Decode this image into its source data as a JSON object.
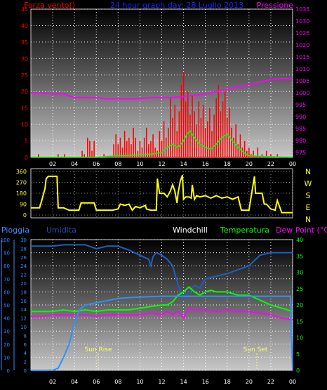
{
  "header": {
    "left_label": "Forza vento()",
    "center_label": "24 hour graph day: 28 Luglio 2013",
    "right_label": "Pressione"
  },
  "bottom_header": {
    "pioggia": "Pioggia",
    "umidita": "Umidita",
    "windchill": "Windchill",
    "temperatura": "Temperatura",
    "dewpoint": "Dew Point (°C)"
  },
  "compass_labels": [
    "N",
    "W",
    "S",
    "E",
    "N"
  ],
  "sun_labels": {
    "rise": "Sun Rise",
    "set": "Sun Set"
  },
  "colors": {
    "wind": "#ff0000",
    "wind_avg": "#00ff00",
    "pressure": "#ff00ff",
    "direction": "#ffff00",
    "humidity": "#1f5fc0",
    "rain": "#2f8fff",
    "temperature": "#00ff00",
    "dewpoint": "#ff00ff",
    "header_blue": "#2020ff"
  },
  "chart_data": [
    {
      "type": "line",
      "name": "wind-pressure",
      "xlabel": "",
      "ylabel": "",
      "x_ticks": [
        "02",
        "04",
        "06",
        "08",
        "10",
        "12",
        "14",
        "16",
        "18",
        "20",
        "22",
        "00"
      ],
      "left_ticks": [
        "45",
        "40",
        "35",
        "30",
        "25",
        "20",
        "15",
        "10",
        "5",
        "0"
      ],
      "right_ticks": [
        "1035",
        "1030",
        "1025",
        "1020",
        "1015",
        "1010",
        "1005",
        "1000",
        "995",
        "990",
        "985",
        "980",
        "975"
      ],
      "ylim_left": [
        0,
        45
      ],
      "ylim_right": [
        973,
        1035
      ],
      "x_range": [
        0,
        24
      ],
      "series": [
        {
          "series_key": "pressure",
          "x": [
            0,
            1,
            2,
            3,
            4,
            5,
            6,
            7,
            8,
            9,
            10,
            11,
            12,
            13,
            14,
            15,
            16,
            17,
            18,
            19,
            20,
            21,
            22,
            23,
            24
          ],
          "y": [
            1000,
            1000,
            999.5,
            999.5,
            998,
            998,
            998,
            997.5,
            997.5,
            997.5,
            997.5,
            998,
            998,
            998,
            998.5,
            999,
            999.5,
            1000.5,
            1001.5,
            1002.5,
            1003.5,
            1004.5,
            1005.5,
            1006,
            1006
          ]
        },
        {
          "series_key": "wind_avg",
          "x": [
            0,
            6,
            7,
            8,
            9,
            10,
            11,
            12,
            12.5,
            13,
            13.5,
            14,
            14.3,
            14.6,
            15,
            15.5,
            16,
            16.5,
            17,
            17.5,
            18,
            18.5,
            19,
            19.5,
            20,
            24
          ],
          "y": [
            0,
            0,
            0.3,
            0.5,
            0.5,
            0.8,
            1,
            1.5,
            3,
            4,
            3,
            5,
            7,
            8,
            6,
            4,
            3,
            2.5,
            4,
            6,
            7,
            5,
            3,
            1.5,
            0.5,
            0
          ]
        },
        {
          "series_key": "wind",
          "x": [
            0.7,
            2.5,
            3.1,
            4.7,
            4.9,
            5.2,
            5.4,
            5.6,
            5.8,
            6.7,
            7.6,
            7.8,
            8,
            8.2,
            8.4,
            8.6,
            8.8,
            9,
            9.2,
            9.4,
            9.6,
            9.8,
            10,
            10.2,
            10.4,
            10.6,
            10.8,
            11,
            11.2,
            11.4,
            11.6,
            11.8,
            12,
            12.2,
            12.4,
            12.6,
            12.8,
            13,
            13.2,
            13.4,
            13.6,
            13.8,
            14,
            14.2,
            14.4,
            14.6,
            14.8,
            15,
            15.2,
            15.4,
            15.6,
            15.8,
            16,
            16.2,
            16.4,
            16.6,
            16.8,
            17,
            17.2,
            17.4,
            17.6,
            17.8,
            18,
            18.2,
            18.4,
            18.6,
            18.8,
            19,
            19.2,
            19.4,
            19.6,
            19.8,
            20,
            20.2,
            20.4,
            20.8,
            21.2,
            21.6,
            22,
            22.6
          ],
          "y": [
            1,
            1,
            1,
            2,
            1,
            6,
            5,
            2,
            5,
            1,
            4,
            7,
            4,
            6,
            3,
            8,
            5,
            6,
            4,
            9,
            6,
            2,
            5,
            3,
            6,
            9,
            4,
            5,
            7,
            3,
            2,
            8,
            5,
            11,
            6,
            9,
            18,
            12,
            16,
            8,
            14,
            22,
            26,
            17,
            20,
            13,
            19,
            14,
            10,
            17,
            12,
            16,
            9,
            11,
            15,
            8,
            13,
            18,
            22,
            14,
            17,
            20,
            12,
            15,
            9,
            6,
            10,
            4,
            7,
            3,
            5,
            2,
            3,
            1,
            2,
            3,
            1,
            2,
            1,
            1
          ]
        }
      ]
    },
    {
      "type": "line",
      "name": "wind-direction",
      "xlabel": "",
      "ylabel": "",
      "y_ticks": [
        "360",
        "270",
        "180",
        "90",
        "0"
      ],
      "ylim": [
        0,
        360
      ],
      "x_range": [
        0,
        24
      ],
      "series": [
        {
          "series_key": "direction",
          "x": [
            0,
            0.8,
            1,
            1.3,
            1.4,
            1.6,
            2.4,
            2.5,
            2.8,
            3,
            3.5,
            4.4,
            4.6,
            5,
            5.1,
            5.8,
            6,
            6.3,
            6.6,
            7,
            7.5,
            8,
            8.2,
            8.6,
            9,
            9.3,
            9.6,
            10,
            10.5,
            10.6,
            11,
            11.5,
            11.6,
            11.8,
            12,
            12.2,
            12.5,
            12.8,
            13,
            13.2,
            13.4,
            13.5,
            13.7,
            13.9,
            14,
            14.2,
            14.5,
            14.7,
            14.8,
            15,
            15.2,
            15.5,
            16,
            16.5,
            17,
            17.5,
            18,
            18.5,
            19,
            19.3,
            19.6,
            20,
            20.5,
            20.6,
            21,
            21.2,
            21.4,
            21.6,
            22,
            22.4,
            22.6,
            23,
            23.5,
            24
          ],
          "y": [
            60,
            60,
            120,
            220,
            300,
            320,
            320,
            60,
            60,
            60,
            40,
            40,
            100,
            100,
            100,
            100,
            40,
            40,
            40,
            40,
            40,
            50,
            90,
            80,
            90,
            40,
            70,
            60,
            80,
            50,
            40,
            40,
            300,
            180,
            180,
            180,
            150,
            200,
            250,
            200,
            100,
            180,
            280,
            330,
            130,
            150,
            150,
            140,
            250,
            130,
            160,
            150,
            160,
            140,
            160,
            140,
            150,
            130,
            150,
            40,
            40,
            40,
            320,
            180,
            180,
            180,
            90,
            90,
            50,
            40,
            120,
            20,
            20,
            20
          ]
        }
      ]
    },
    {
      "type": "line",
      "name": "temp-humidity",
      "xlabel": "",
      "ylabel": "",
      "left_ticks_humidity": [
        "100",
        "90",
        "80",
        "70",
        "60",
        "50",
        "40",
        "30",
        "20",
        "10",
        "0"
      ],
      "left_ticks_rain": [
        "30",
        "28",
        "26",
        "24",
        "22",
        "20",
        "18",
        "16",
        "14",
        "12",
        "10",
        "8",
        "6",
        "4",
        "2",
        "0"
      ],
      "right_ticks": [
        "40",
        "35",
        "30",
        "25",
        "20",
        "15",
        "10",
        "5",
        "0"
      ],
      "ylim_humidity": [
        0,
        100
      ],
      "ylim_rain": [
        0,
        30
      ],
      "ylim_right": [
        0,
        40
      ],
      "x_range": [
        0,
        24
      ],
      "series": [
        {
          "series_key": "humidity",
          "x": [
            0,
            1,
            2,
            3,
            4,
            5,
            6,
            7,
            8,
            9,
            10,
            10.8,
            11,
            11.2,
            11.5,
            12,
            12.5,
            13,
            13.5,
            14,
            14.5,
            15,
            15.5,
            16,
            17,
            18,
            19,
            20,
            21,
            22,
            23,
            24
          ],
          "y": [
            95,
            95,
            95,
            96,
            96,
            96,
            93,
            95,
            95,
            92,
            88,
            85,
            80,
            87,
            90,
            88,
            85,
            80,
            65,
            55,
            60,
            65,
            63,
            70,
            72,
            74,
            77,
            80,
            88,
            90,
            90,
            90
          ]
        },
        {
          "series_key": "rain",
          "x": [
            0,
            1,
            2,
            2.5,
            3,
            3.5,
            4,
            4.5,
            5,
            6,
            7,
            8,
            9,
            10,
            11,
            12,
            13,
            14,
            15,
            16,
            17,
            18,
            19,
            20,
            21,
            22,
            23,
            23.8,
            24
          ],
          "y": [
            0,
            0,
            0,
            0.5,
            3,
            6,
            11,
            14,
            15,
            15.5,
            16,
            16.5,
            16.7,
            16.8,
            16.9,
            17,
            17,
            17,
            17,
            17,
            17,
            17,
            17,
            17,
            17,
            17,
            17,
            17,
            0
          ]
        },
        {
          "series_key": "temperature",
          "x": [
            0,
            1,
            2,
            3,
            4,
            5,
            6,
            7,
            8,
            9,
            10,
            11,
            12,
            12.5,
            13,
            13.5,
            14,
            14.5,
            15,
            15.5,
            16,
            16.5,
            17,
            18,
            19,
            20,
            21,
            22,
            23,
            24
          ],
          "y": [
            18,
            18,
            18,
            18.5,
            18,
            18.5,
            18,
            18.5,
            18.5,
            18.5,
            19,
            19.5,
            20,
            20,
            21,
            23,
            24,
            25.5,
            24,
            23,
            24,
            24.5,
            24,
            24,
            23,
            23,
            21.5,
            20,
            19,
            18
          ]
        },
        {
          "series_key": "dewpoint",
          "x": [
            0,
            1,
            2,
            3,
            4,
            5,
            6,
            7,
            8,
            9,
            10,
            11,
            12,
            12.5,
            13,
            13.5,
            14,
            14.5,
            15,
            16,
            17,
            18,
            19,
            20,
            21,
            22,
            23,
            24
          ],
          "y": [
            16.5,
            16.5,
            17,
            17,
            17,
            17,
            16.5,
            17,
            17,
            17,
            17,
            17.5,
            17,
            18,
            17,
            18,
            16,
            19,
            18.5,
            18.5,
            18,
            18.5,
            18,
            18,
            17.5,
            17,
            16,
            15.5
          ]
        },
        {
          "series_key": "windchill",
          "x": [
            0,
            24
          ],
          "y": [
            18,
            18
          ]
        }
      ]
    }
  ]
}
